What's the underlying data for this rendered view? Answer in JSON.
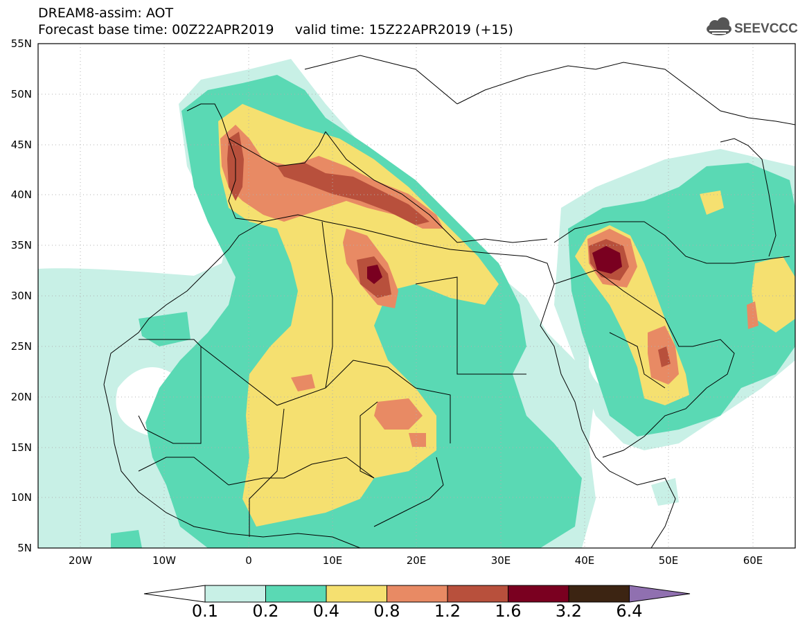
{
  "header": {
    "title": "DREAM8-assim: AOT",
    "subtitle": "Forecast base time: 00Z22APR2019     valid time: 15Z22APR2019 (+15)"
  },
  "logo": {
    "text": "SEEVCCC",
    "icon": "cloud-logo-icon"
  },
  "map": {
    "lat_ticks": [
      "55N",
      "50N",
      "45N",
      "40N",
      "35N",
      "30N",
      "25N",
      "20N",
      "15N",
      "10N",
      "5N"
    ],
    "lon_ticks": [
      "20W",
      "10W",
      "0",
      "10E",
      "20E",
      "30E",
      "40E",
      "50E",
      "60E"
    ],
    "extent": {
      "lon": [
        -25,
        65
      ],
      "lat": [
        5,
        55
      ]
    }
  },
  "colorbar": {
    "labels": [
      "0.1",
      "0.2",
      "0.4",
      "0.8",
      "1.2",
      "1.6",
      "3.2",
      "6.4"
    ],
    "colors": [
      "#ffffff",
      "#c8f0e6",
      "#5ad9b4",
      "#f5e070",
      "#e88a64",
      "#b8503c",
      "#7a0020",
      "#3c2412",
      "#9070b0"
    ]
  }
}
